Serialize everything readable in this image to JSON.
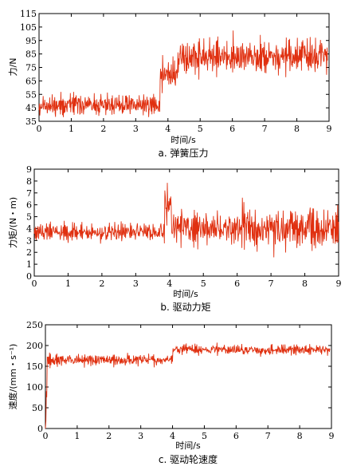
{
  "chart_data": [
    {
      "type": "line",
      "xlabel": "时间/s",
      "ylabel": "力/N",
      "caption": "a. 弹簧压力",
      "xlim": [
        0,
        9
      ],
      "ylim": [
        35,
        115
      ],
      "xticks": [
        0,
        1,
        2,
        3,
        4,
        5,
        6,
        7,
        8,
        9
      ],
      "yticks": [
        35,
        45,
        55,
        65,
        75,
        85,
        95,
        105,
        115
      ],
      "grid": false,
      "color": "#e03010",
      "segments": [
        {
          "x_start": 0,
          "x_end": 3.75,
          "mean": 47,
          "amplitude": 9,
          "min": 38,
          "max": 66
        },
        {
          "x_start": 3.75,
          "x_end": 4.3,
          "mean": 70,
          "amplitude": 12,
          "min": 50,
          "max": 85
        },
        {
          "x_start": 4.3,
          "x_end": 8.95,
          "mean": 83,
          "amplitude": 14,
          "min": 57,
          "max": 112
        }
      ]
    },
    {
      "type": "line",
      "xlabel": "时间/s",
      "ylabel": "力矩/(N・m)",
      "caption": "b. 驱动力矩",
      "xlim": [
        0,
        9
      ],
      "ylim": [
        0,
        9
      ],
      "xticks": [
        0,
        1,
        2,
        3,
        4,
        5,
        6,
        7,
        8,
        9
      ],
      "yticks": [
        0,
        1,
        2,
        3,
        4,
        5,
        6,
        7,
        8,
        9
      ],
      "grid": false,
      "color": "#e03010",
      "segments": [
        {
          "x_start": 0,
          "x_end": 3.85,
          "mean": 3.7,
          "amplitude": 0.8,
          "min": 2.0,
          "max": 5.5
        },
        {
          "x_start": 3.85,
          "x_end": 4.05,
          "mean": 6.0,
          "amplitude": 2.0,
          "min": 3.0,
          "max": 8.8
        },
        {
          "x_start": 4.05,
          "x_end": 9.0,
          "mean": 4.0,
          "amplitude": 1.8,
          "min": 0.0,
          "max": 7.9
        }
      ]
    },
    {
      "type": "line",
      "xlabel": "时间/s",
      "ylabel": "速度/(mm・s⁻¹)",
      "caption": "c. 驱动轮速度",
      "xlim": [
        0,
        9
      ],
      "ylim": [
        0,
        250
      ],
      "xticks": [
        0,
        1,
        2,
        3,
        4,
        5,
        6,
        7,
        8,
        9
      ],
      "yticks": [
        0,
        50,
        100,
        150,
        200,
        250
      ],
      "grid": false,
      "color": "#e03010",
      "segments": [
        {
          "x_start": 0,
          "x_end": 0.05,
          "mean": 100,
          "amplitude": 100,
          "min": 0,
          "max": 210
        },
        {
          "x_start": 0.05,
          "x_end": 4.0,
          "mean": 165,
          "amplitude": 15,
          "min": 135,
          "max": 205
        },
        {
          "x_start": 4.0,
          "x_end": 8.95,
          "mean": 190,
          "amplitude": 14,
          "min": 165,
          "max": 225
        }
      ]
    }
  ]
}
